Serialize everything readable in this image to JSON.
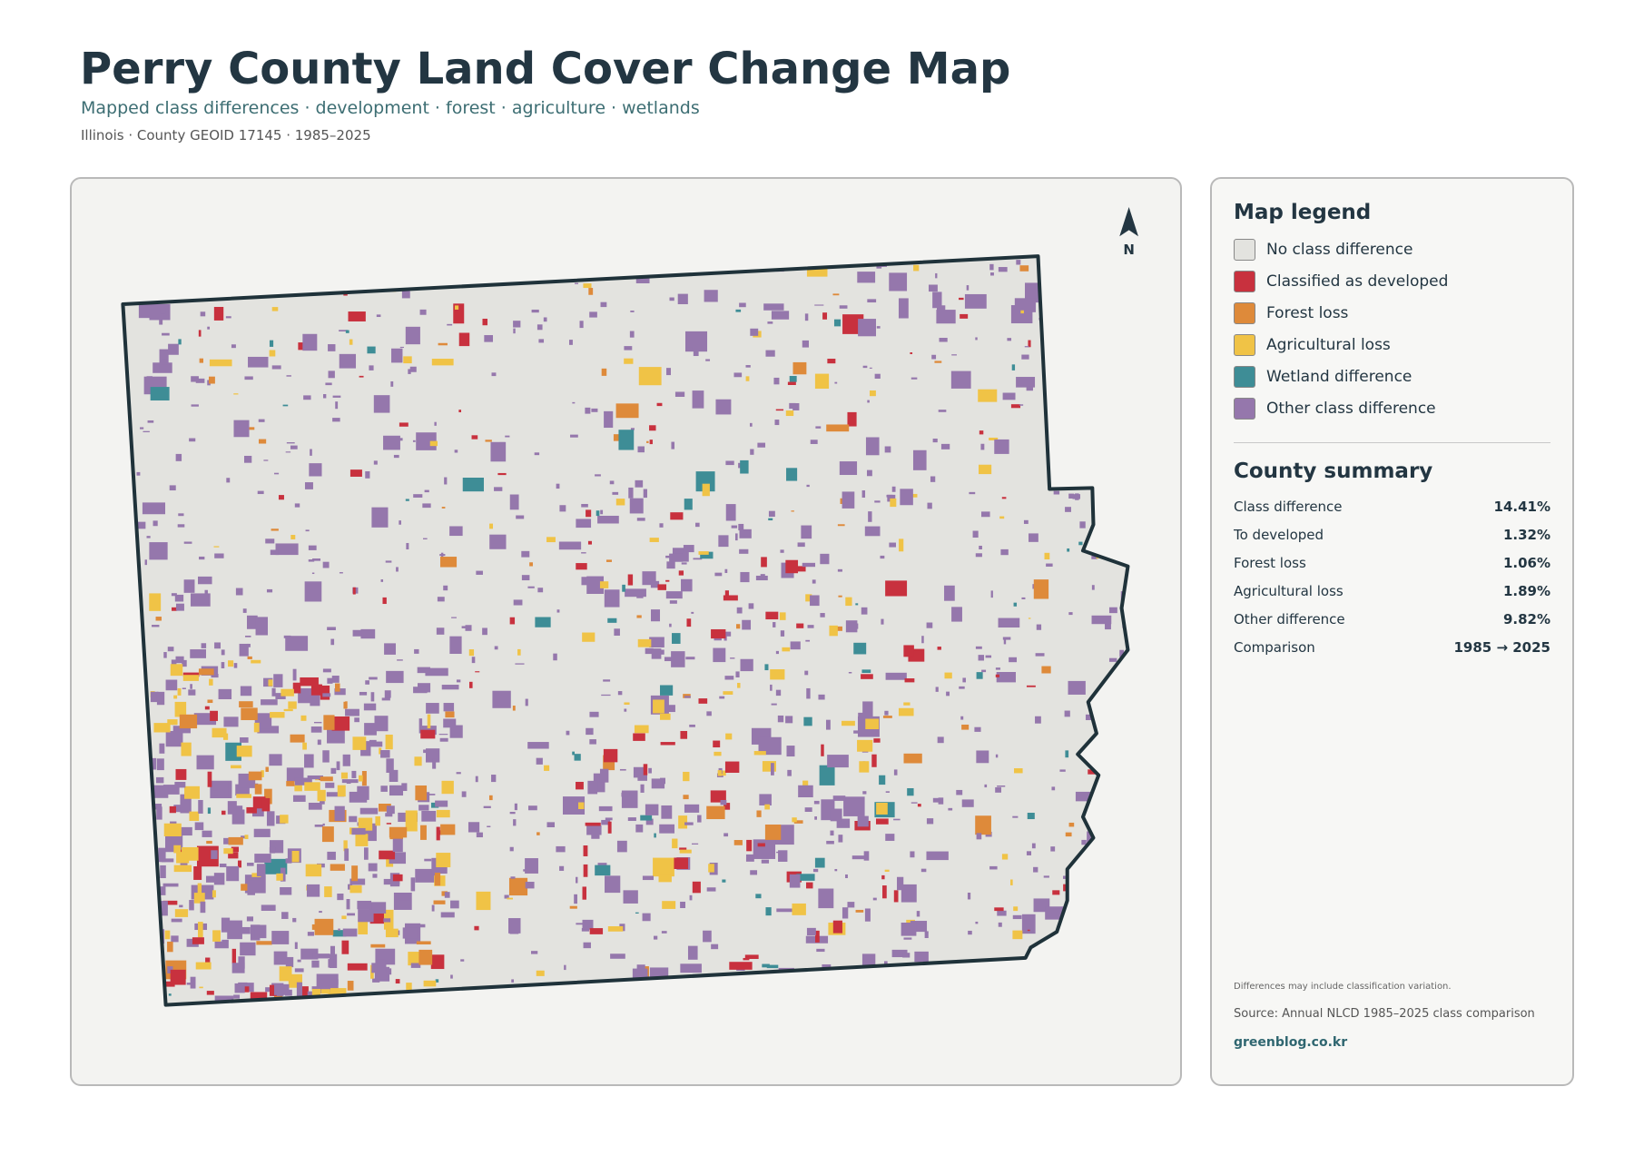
{
  "header": {
    "title": "Perry County Land Cover Change Map",
    "subtitle": "Mapped class differences · development · forest · agriculture · wetlands",
    "meta": "Illinois · County GEOID 17145 · 1985–2025"
  },
  "map": {
    "north_label": "N"
  },
  "legend": {
    "title": "Map legend",
    "items": [
      {
        "label": "No class difference",
        "color": "#e3e3df"
      },
      {
        "label": "Classified as developed",
        "color": "#c8313e"
      },
      {
        "label": "Forest loss",
        "color": "#de8a3a"
      },
      {
        "label": "Agricultural loss",
        "color": "#f0c346"
      },
      {
        "label": "Wetland difference",
        "color": "#3e8d96"
      },
      {
        "label": "Other class difference",
        "color": "#9577ac"
      }
    ]
  },
  "summary": {
    "title": "County summary",
    "rows": [
      {
        "label": "Class difference",
        "value": "14.41%"
      },
      {
        "label": "To developed",
        "value": "1.32%"
      },
      {
        "label": "Forest loss",
        "value": "1.06%"
      },
      {
        "label": "Agricultural loss",
        "value": "1.89%"
      },
      {
        "label": "Other difference",
        "value": "9.82%"
      },
      {
        "label": "Comparison",
        "value": "1985 → 2025"
      }
    ]
  },
  "footer": {
    "note": "Differences may include classification variation.",
    "source": "Source: Annual NLCD 1985–2025 class comparison",
    "credit": "greenblog.co.kr"
  }
}
